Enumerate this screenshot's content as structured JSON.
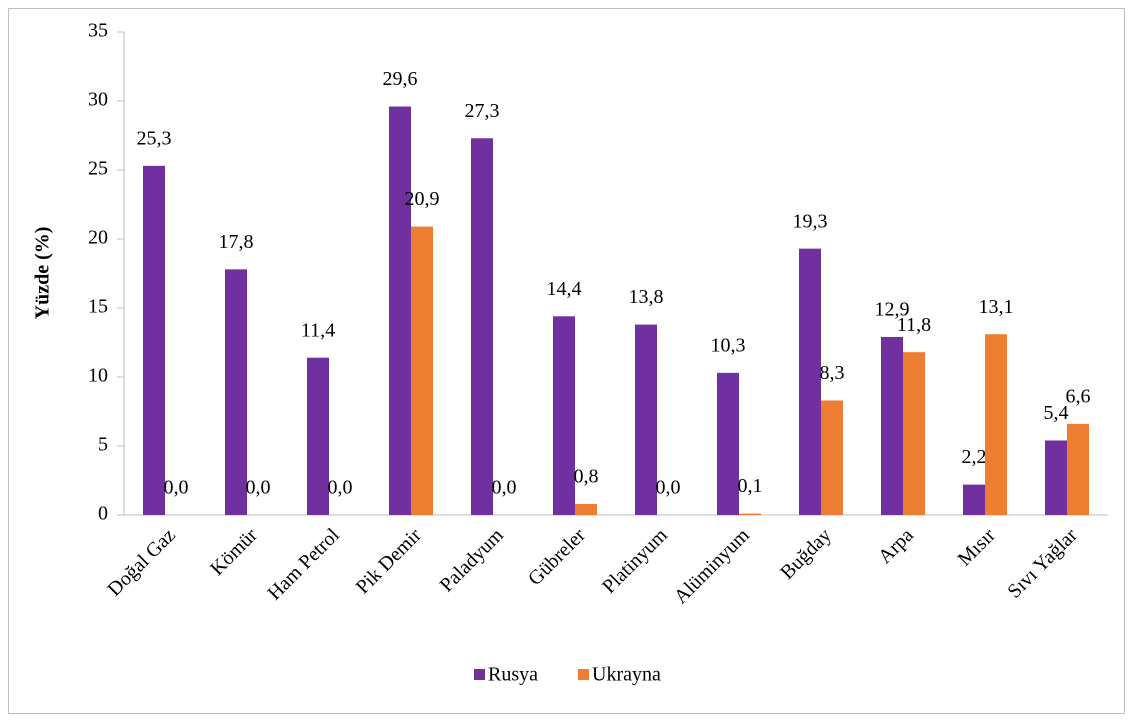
{
  "chart_data": {
    "type": "bar",
    "ylabel": "Yüzde (%)",
    "categories": [
      "Doğal Gaz",
      "Kömür",
      "Ham Petrol",
      "Pik Demir",
      "Paladyum",
      "Gübreler",
      "Platinyum",
      "Alüminyum",
      "Buğday",
      "Arpa",
      "Mısır",
      "Sıvı Yağlar"
    ],
    "series": [
      {
        "name": "Rusya",
        "color": "#7030a0",
        "values": [
          25.3,
          17.8,
          11.4,
          29.6,
          27.3,
          14.4,
          13.8,
          10.3,
          19.3,
          12.9,
          2.2,
          5.4
        ],
        "value_labels": [
          "25,3",
          "17,8",
          "11,4",
          "29,6",
          "27,3",
          "14,4",
          "13,8",
          "10,3",
          "19,3",
          "12,9",
          "2,2",
          "5,4"
        ]
      },
      {
        "name": "Ukrayna",
        "color": "#ed7d31",
        "values": [
          0.0,
          0.0,
          0.0,
          20.9,
          0.0,
          0.8,
          0.0,
          0.1,
          8.3,
          11.8,
          13.1,
          6.6
        ],
        "value_labels": [
          "0,0",
          "0,0",
          "0,0",
          "20,9",
          "0,0",
          "0,8",
          "0,0",
          "0,1",
          "8,3",
          "11,8",
          "13,1",
          "6,6"
        ]
      }
    ],
    "ylim": [
      0,
      35
    ],
    "yticks": [
      0,
      5,
      10,
      15,
      20,
      25,
      30,
      35
    ],
    "grid": false,
    "legend": "bottom"
  }
}
